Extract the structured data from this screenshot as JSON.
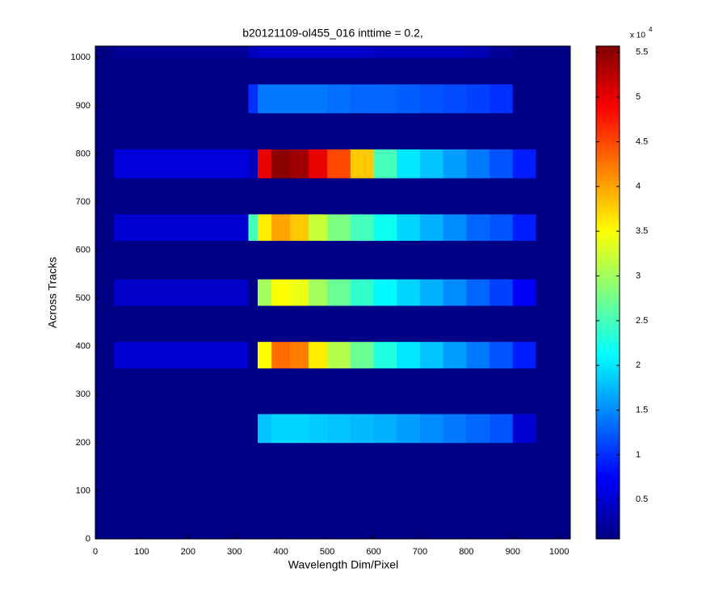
{
  "chart_data": {
    "type": "heatmap",
    "title": "b20121109-ol455_016 inttime = 0.2,",
    "x_label": "Wavelength Dim/Pixel",
    "y_label": "Across Tracks",
    "xbins": [
      0,
      40,
      330,
      350,
      380,
      420,
      460,
      500,
      550,
      600,
      650,
      700,
      750,
      800,
      850,
      900,
      950,
      1024
    ],
    "ybins": [
      0,
      200,
      260,
      355,
      410,
      485,
      540,
      620,
      675,
      750,
      810,
      885,
      945,
      1000,
      1024
    ],
    "values": [
      [
        0.1,
        0.1,
        0.1,
        0.1,
        0.1,
        0.1,
        0.1,
        0.1,
        0.1,
        0.1,
        0.1,
        0.1,
        0.1,
        0.1,
        0.1,
        0.1,
        0.1
      ],
      [
        0.1,
        0.1,
        0.1,
        1.8,
        1.9,
        1.9,
        1.85,
        1.8,
        1.75,
        1.7,
        1.6,
        1.5,
        1.4,
        1.3,
        1.2,
        0.5,
        0.1
      ],
      [
        0.1,
        0.1,
        0.1,
        0.1,
        0.1,
        0.1,
        0.1,
        0.1,
        0.1,
        0.1,
        0.1,
        0.1,
        0.1,
        0.1,
        0.1,
        0.1,
        0.1
      ],
      [
        0.1,
        0.5,
        0.1,
        3.5,
        4.3,
        4.2,
        3.6,
        3.1,
        2.7,
        2.3,
        2.0,
        1.8,
        1.6,
        1.4,
        1.2,
        0.9,
        0.1
      ],
      [
        0.1,
        0.1,
        0.1,
        0.1,
        0.1,
        0.1,
        0.1,
        0.1,
        0.1,
        0.1,
        0.1,
        0.1,
        0.1,
        0.1,
        0.1,
        0.1,
        0.1
      ],
      [
        0.1,
        0.45,
        0.1,
        3.0,
        3.5,
        3.4,
        3.0,
        2.7,
        2.4,
        2.1,
        1.9,
        1.7,
        1.5,
        1.3,
        1.1,
        0.7,
        0.1
      ],
      [
        0.1,
        0.1,
        0.1,
        0.1,
        0.1,
        0.1,
        0.1,
        0.1,
        0.1,
        0.1,
        0.1,
        0.1,
        0.1,
        0.1,
        0.1,
        0.1,
        0.1
      ],
      [
        0.1,
        0.5,
        2.5,
        3.6,
        4.0,
        3.8,
        3.2,
        2.8,
        2.5,
        2.2,
        1.9,
        1.7,
        1.5,
        1.3,
        1.2,
        0.9,
        0.1
      ],
      [
        0.1,
        0.1,
        0.1,
        0.1,
        0.1,
        0.1,
        0.1,
        0.1,
        0.1,
        0.1,
        0.1,
        0.1,
        0.1,
        0.1,
        0.1,
        0.1,
        0.1
      ],
      [
        0.1,
        0.55,
        0.4,
        5.0,
        5.5,
        5.4,
        5.0,
        4.5,
        3.8,
        2.5,
        2.0,
        1.8,
        1.6,
        1.4,
        1.2,
        0.9,
        0.1
      ],
      [
        0.1,
        0.1,
        0.1,
        0.1,
        0.1,
        0.1,
        0.1,
        0.1,
        0.1,
        0.1,
        0.1,
        0.1,
        0.1,
        0.1,
        0.1,
        0.1,
        0.1
      ],
      [
        0.1,
        0.1,
        1.0,
        1.4,
        1.4,
        1.4,
        1.4,
        1.35,
        1.3,
        1.3,
        1.25,
        1.2,
        1.15,
        1.1,
        1.0,
        0.1,
        0.1
      ],
      [
        0.1,
        0.1,
        0.1,
        0.1,
        0.1,
        0.1,
        0.1,
        0.1,
        0.1,
        0.1,
        0.1,
        0.1,
        0.1,
        0.1,
        0.1,
        0.1,
        0.1
      ],
      [
        0.1,
        0.2,
        0.4,
        0.45,
        0.45,
        0.45,
        0.45,
        0.45,
        0.45,
        0.4,
        0.4,
        0.4,
        0.4,
        0.35,
        0.2,
        0.1,
        0.1
      ]
    ],
    "xlim": [
      0,
      1024
    ],
    "ylim": [
      0,
      1024
    ],
    "xticks": [
      0,
      100,
      200,
      300,
      400,
      500,
      600,
      700,
      800,
      900,
      1000
    ],
    "yticks": [
      0,
      100,
      200,
      300,
      400,
      500,
      600,
      700,
      800,
      900,
      1000
    ],
    "colormap": "jet",
    "clim": [
      0.06,
      5.57
    ],
    "cticks": [
      0.5,
      1,
      1.5,
      2,
      2.5,
      3,
      3.5,
      4,
      4.5,
      5,
      5.5
    ],
    "colorbar_multiplier": {
      "base": "x 10",
      "exponent": "4"
    }
  }
}
